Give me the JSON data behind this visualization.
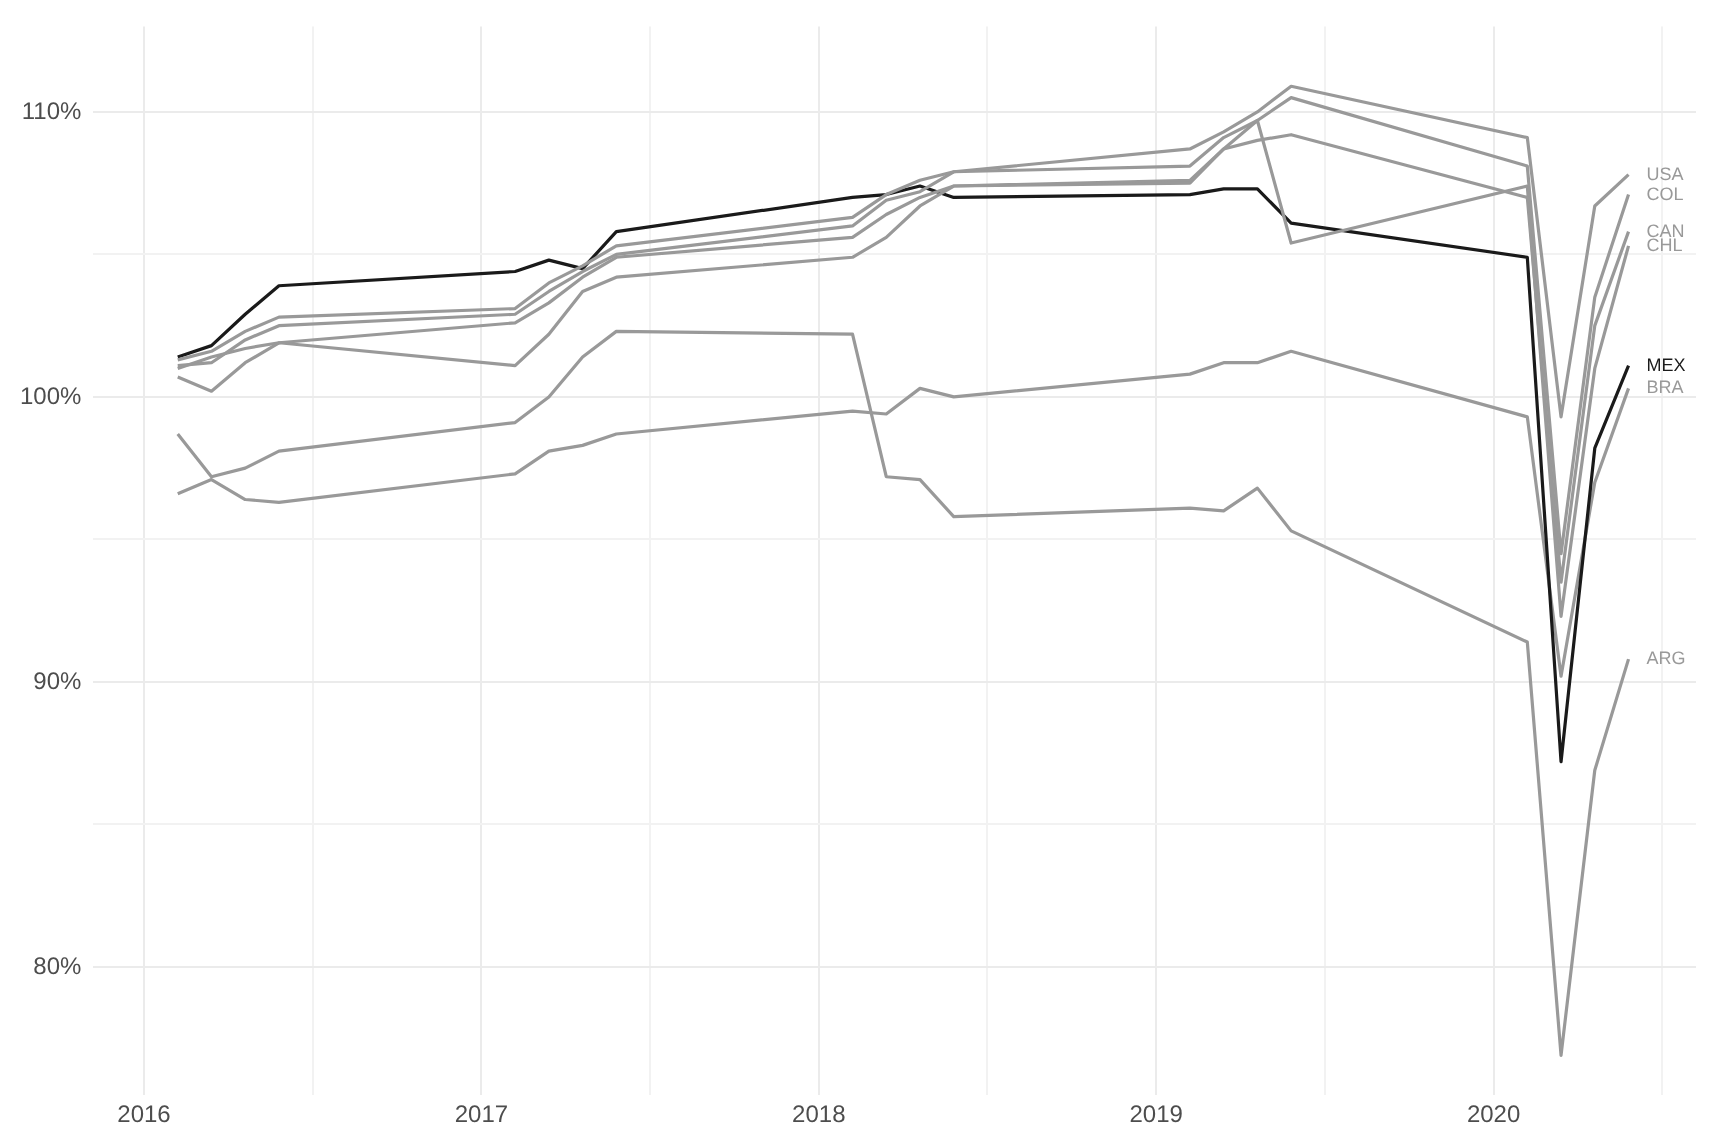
{
  "chart_data": {
    "type": "line",
    "x": [
      2016.1,
      2016.2,
      2016.3,
      2016.4,
      2017.1,
      2017.2,
      2017.3,
      2017.4,
      2018.1,
      2018.2,
      2018.3,
      2018.4,
      2019.1,
      2019.2,
      2019.3,
      2019.4,
      2020.1,
      2020.2,
      2020.3,
      2020.4
    ],
    "series": [
      {
        "name": "USA",
        "color": "#999999",
        "values": [
          101.3,
          101.6,
          102.3,
          102.8,
          103.1,
          104.0,
          104.6,
          105.3,
          106.3,
          107.1,
          107.6,
          107.9,
          108.7,
          109.3,
          110.0,
          110.9,
          109.1,
          99.3,
          106.7,
          107.8
        ]
      },
      {
        "name": "COL",
        "color": "#999999",
        "values": [
          101.1,
          101.2,
          102.0,
          102.5,
          102.9,
          103.7,
          104.4,
          105.0,
          106.0,
          106.9,
          107.2,
          107.9,
          108.1,
          109.1,
          109.7,
          110.5,
          108.1,
          94.5,
          103.5,
          107.1
        ]
      },
      {
        "name": "CAN",
        "color": "#999999",
        "values": [
          100.7,
          100.2,
          101.2,
          101.9,
          102.6,
          103.3,
          104.2,
          104.9,
          105.6,
          106.4,
          107.0,
          107.4,
          107.5,
          108.7,
          109.0,
          109.2,
          107.0,
          93.5,
          102.5,
          105.8
        ]
      },
      {
        "name": "CHL",
        "color": "#999999",
        "values": [
          101.0,
          101.4,
          101.7,
          101.9,
          101.1,
          102.2,
          103.7,
          104.2,
          104.9,
          105.6,
          106.7,
          107.4,
          107.6,
          108.7,
          109.7,
          105.4,
          107.4,
          92.3,
          101.0,
          105.3
        ]
      },
      {
        "name": "MEX",
        "color": "#1a1a1a",
        "values": [
          101.4,
          101.8,
          102.9,
          103.9,
          104.4,
          104.8,
          104.5,
          105.8,
          107.0,
          107.1,
          107.4,
          107.0,
          107.1,
          107.3,
          107.3,
          106.1,
          104.9,
          87.2,
          98.2,
          101.1
        ]
      },
      {
        "name": "BRA",
        "color": "#999999",
        "values": [
          96.6,
          97.1,
          96.4,
          96.3,
          97.3,
          98.1,
          98.3,
          98.7,
          99.5,
          99.4,
          100.3,
          100.0,
          100.8,
          101.2,
          101.2,
          101.6,
          99.3,
          90.2,
          97.0,
          100.3
        ]
      },
      {
        "name": "ARG",
        "color": "#999999",
        "values": [
          98.7,
          97.2,
          97.5,
          98.1,
          99.1,
          100.0,
          101.4,
          102.3,
          102.2,
          97.2,
          97.1,
          95.8,
          96.1,
          96.0,
          96.8,
          95.3,
          91.4,
          76.9,
          86.9,
          90.8
        ]
      }
    ],
    "xlim": [
      2015.85,
      2020.6
    ],
    "xticks": [
      2016,
      {
        "value": 2016.5,
        "label": null
      },
      2017,
      {
        "value": 2017.5,
        "label": null
      },
      2018,
      {
        "value": 2018.5,
        "label": null
      },
      2019,
      {
        "value": 2019.5,
        "label": null
      },
      2020,
      {
        "value": 2020.5,
        "label": null
      }
    ],
    "ylim": [
      75.5,
      113
    ],
    "yticks": [
      {
        "value": 80,
        "label": "80%"
      },
      {
        "value": 85,
        "label": null
      },
      {
        "value": 90,
        "label": "90%"
      },
      {
        "value": 95,
        "label": null
      },
      {
        "value": 100,
        "label": "100%"
      },
      {
        "value": 105,
        "label": null
      },
      {
        "value": 110,
        "label": "110%"
      }
    ],
    "grid": true,
    "legend": false,
    "marker": "none",
    "line_style": "solid"
  }
}
